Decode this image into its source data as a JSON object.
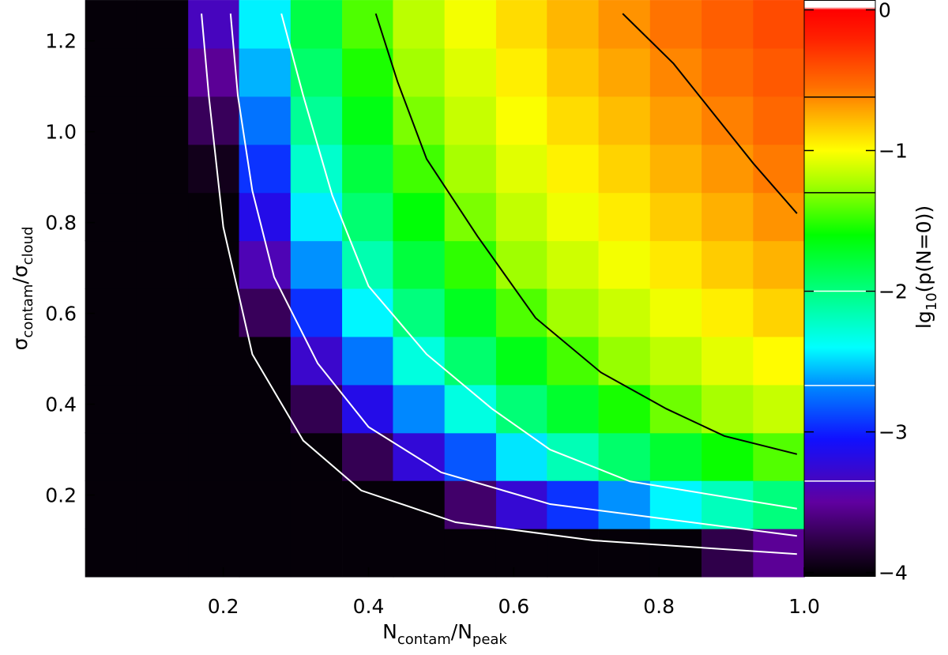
{
  "chart_data": {
    "type": "heatmap",
    "xlabel": [
      {
        "text": "N"
      },
      {
        "text": "contam",
        "sub": true
      },
      {
        "text": "/N"
      },
      {
        "text": "peak",
        "sub": true
      }
    ],
    "ylabel": [
      {
        "text": "σ"
      },
      {
        "text": "contam",
        "sub": true
      },
      {
        "text": "/σ"
      },
      {
        "text": "cloud",
        "sub": true
      }
    ],
    "clabel": [
      {
        "text": "lg"
      },
      {
        "text": "10",
        "sub": true
      },
      {
        "text": "(p(N=0))"
      }
    ],
    "xlim": [
      0.01,
      1.0
    ],
    "ylim": [
      0.02,
      1.29
    ],
    "xticks": [
      0.2,
      0.4,
      0.6,
      0.8,
      {
        "value": 1,
        "label": "1.0"
      }
    ],
    "yticks": [
      0.2,
      0.4,
      0.6,
      0.8,
      {
        "value": 1,
        "label": "1.0"
      },
      1.2
    ],
    "clim": [
      -4.03,
      0.07
    ],
    "cticks": [
      0,
      {
        "value": -1,
        "label": "−1"
      },
      {
        "value": -2,
        "label": "−2"
      },
      {
        "value": -3,
        "label": "−3"
      },
      {
        "value": -4,
        "label": "−4"
      }
    ],
    "colormap": [
      {
        "value": -4.03,
        "color": "#000000"
      },
      {
        "value": -3.85,
        "color": "#200030"
      },
      {
        "value": -3.5,
        "color": "#6000a0"
      },
      {
        "value": -3.05,
        "color": "#1010ff"
      },
      {
        "value": -2.7,
        "color": "#0080ff"
      },
      {
        "value": -2.4,
        "color": "#00ffff"
      },
      {
        "value": -2.0,
        "color": "#00ff80"
      },
      {
        "value": -1.6,
        "color": "#00ff00"
      },
      {
        "value": -1.25,
        "color": "#a0ff00"
      },
      {
        "value": -1.0,
        "color": "#ffff00"
      },
      {
        "value": -0.75,
        "color": "#ffb000"
      },
      {
        "value": -0.55,
        "color": "#ff7000"
      },
      {
        "value": -0.2,
        "color": "#ff2000"
      },
      {
        "value": 0.0,
        "color": "#ff0000"
      },
      {
        "value": 0.02,
        "color": "#ffffff"
      }
    ],
    "x": [
      0.045,
      0.116,
      0.187,
      0.257,
      0.328,
      0.399,
      0.469,
      0.54,
      0.611,
      0.681,
      0.752,
      0.823,
      0.894,
      0.965
    ],
    "y": [
      0.073,
      0.179,
      0.285,
      0.39,
      0.496,
      0.602,
      0.708,
      0.813,
      0.919,
      1.025,
      1.131,
      1.237
    ],
    "z": [
      [
        -4,
        -4,
        -4,
        -4,
        -4,
        -4,
        -4,
        -4,
        -4,
        -4,
        -4,
        -4,
        -3.77,
        -3.53
      ],
      [
        -4,
        -4,
        -4,
        -4,
        -4,
        -4,
        -4,
        -3.67,
        -3.26,
        -2.94,
        -2.66,
        -2.42,
        -2.19,
        -1.99
      ],
      [
        -4,
        -4,
        -4,
        -4,
        -4,
        -3.74,
        -3.24,
        -2.83,
        -2.46,
        -2.17,
        -1.93,
        -1.75,
        -1.58,
        -1.42
      ],
      [
        -4,
        -4,
        -4,
        -4,
        -3.75,
        -3.16,
        -2.68,
        -2.31,
        -1.97,
        -1.74,
        -1.55,
        -1.36,
        -1.23,
        -1.15
      ],
      [
        -4,
        -4,
        -4,
        -4,
        -3.29,
        -2.73,
        -2.3,
        -1.94,
        -1.67,
        -1.45,
        -1.27,
        -1.17,
        -1.07,
        -0.99
      ],
      [
        -4,
        -4,
        -4,
        -3.72,
        -2.95,
        -2.42,
        -1.99,
        -1.7,
        -1.43,
        -1.24,
        -1.14,
        -1.04,
        -0.95,
        -0.86
      ],
      [
        -4,
        -4,
        -4,
        -3.4,
        -2.66,
        -2.15,
        -1.79,
        -1.5,
        -1.25,
        -1.13,
        -1.03,
        -0.93,
        -0.84,
        -0.76
      ],
      [
        -4,
        -4,
        -4,
        -3.16,
        -2.44,
        -1.95,
        -1.62,
        -1.33,
        -1.16,
        -1.04,
        -0.94,
        -0.84,
        -0.75,
        -0.66
      ],
      [
        -4,
        -4,
        -3.93,
        -2.94,
        -2.24,
        -1.8,
        -1.46,
        -1.23,
        -1.08,
        -0.96,
        -0.86,
        -0.76,
        -0.67,
        -0.58
      ],
      [
        -4,
        -4,
        -3.72,
        -2.74,
        -2.07,
        -1.66,
        -1.33,
        -1.15,
        -1.01,
        -0.89,
        -0.79,
        -0.69,
        -0.6,
        -0.51
      ],
      [
        -4,
        -4,
        -3.53,
        -2.58,
        -1.93,
        -1.54,
        -1.24,
        -1.09,
        -0.95,
        -0.82,
        -0.72,
        -0.62,
        -0.53,
        -0.45
      ],
      [
        -4,
        -4,
        -3.36,
        -2.43,
        -1.82,
        -1.43,
        -1.18,
        -1.03,
        -0.89,
        -0.77,
        -0.66,
        -0.56,
        -0.47,
        -0.39
      ]
    ],
    "contours": [
      {
        "level": -0.62,
        "color": "#000000",
        "x": [
          0.75,
          0.82,
          0.87,
          0.93,
          0.99
        ],
        "y": [
          1.26,
          1.15,
          1.05,
          0.93,
          0.82
        ]
      },
      {
        "level": -1.3,
        "color": "#000000",
        "x": [
          0.41,
          0.44,
          0.48,
          0.55,
          0.63,
          0.72,
          0.81,
          0.89,
          0.99
        ],
        "y": [
          1.26,
          1.11,
          0.94,
          0.77,
          0.59,
          0.47,
          0.39,
          0.33,
          0.29
        ]
      },
      {
        "level": -2.0,
        "color": "#ffffff",
        "x": [
          0.28,
          0.31,
          0.35,
          0.4,
          0.48,
          0.57,
          0.65,
          0.76,
          0.99
        ],
        "y": [
          1.26,
          1.08,
          0.86,
          0.66,
          0.51,
          0.39,
          0.3,
          0.23,
          0.17
        ]
      },
      {
        "level": -2.67,
        "color": "#ffffff",
        "x": [
          0.21,
          0.22,
          0.24,
          0.27,
          0.33,
          0.4,
          0.5,
          0.65,
          0.99
        ],
        "y": [
          1.26,
          1.08,
          0.87,
          0.68,
          0.49,
          0.35,
          0.25,
          0.18,
          0.11
        ]
      },
      {
        "level": -3.35,
        "color": "#ffffff",
        "x": [
          0.17,
          0.18,
          0.2,
          0.24,
          0.31,
          0.39,
          0.52,
          0.71,
          0.99
        ],
        "y": [
          1.26,
          1.08,
          0.79,
          0.51,
          0.32,
          0.21,
          0.14,
          0.1,
          0.07
        ]
      }
    ]
  }
}
